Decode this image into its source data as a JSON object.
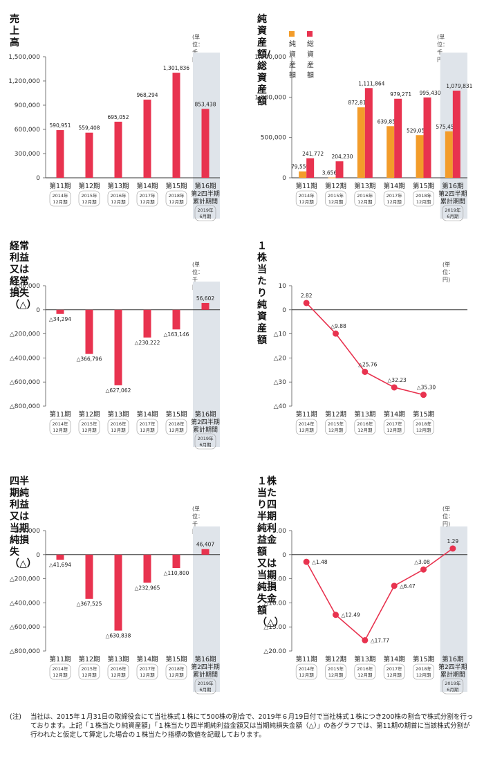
{
  "colors": {
    "net": "#f39c2a",
    "total": "#e8334f",
    "bar": "#e8334f",
    "highlight": "#dfe4ea",
    "axis": "#333333"
  },
  "chart_data": [
    {
      "id": "sales",
      "type": "bar",
      "title": "売上高",
      "unit": "(単位：千円)",
      "ylim": [
        0,
        1500000
      ],
      "yticks": [
        0,
        300000,
        600000,
        900000,
        1200000,
        1500000
      ],
      "ytick_labels": [
        "0",
        "300,000",
        "600,000",
        "900,000",
        "1,200,000",
        "1,500,000"
      ],
      "categories": [
        "第11期",
        "第12期",
        "第13期",
        "第14期",
        "第15期",
        "第16期"
      ],
      "sublabels": [
        [
          "2014年",
          "12月期"
        ],
        [
          "2015年",
          "12月期"
        ],
        [
          "2016年",
          "12月期"
        ],
        [
          "2017年",
          "12月期"
        ],
        [
          "2018年",
          "12月期"
        ],
        [
          "第2四半期",
          "累計期間",
          "2019年",
          "6月期"
        ]
      ],
      "values": [
        590951,
        559408,
        695052,
        968294,
        1301836,
        853438
      ],
      "value_labels": [
        "590,951",
        "559,408",
        "695,052",
        "968,294",
        "1,301,836",
        "853,438"
      ],
      "highlight_last": true
    },
    {
      "id": "assets",
      "type": "bar",
      "title": "純資産額/総資産額",
      "unit": "(単位：千円)",
      "ylim": [
        0,
        1500000
      ],
      "yticks": [
        0,
        500000,
        1000000,
        1500000
      ],
      "ytick_labels": [
        "0",
        "500,000",
        "1,000,000",
        "1,500,000"
      ],
      "categories": [
        "第11期",
        "第12期",
        "第13期",
        "第14期",
        "第15期",
        "第16期"
      ],
      "sublabels": [
        [
          "2014年",
          "12月期"
        ],
        [
          "2015年",
          "12月期"
        ],
        [
          "2016年",
          "12月期"
        ],
        [
          "2017年",
          "12月期"
        ],
        [
          "2018年",
          "12月期"
        ],
        [
          "第2四半期",
          "累計期間",
          "2019年",
          "6月期"
        ]
      ],
      "series": [
        {
          "name": "純資産額",
          "values": [
            79559,
            3656,
            872817,
            639852,
            529051,
            575459
          ],
          "labels": [
            "79,559",
            "3,656",
            "872,817",
            "639,852",
            "529,051",
            "575,459"
          ]
        },
        {
          "name": "総資産額",
          "values": [
            241772,
            204230,
            1111864,
            979271,
            995430,
            1079831
          ],
          "labels": [
            "241,772",
            "204,230",
            "1,111,864",
            "979,271",
            "995,430",
            "1,079,831"
          ]
        }
      ],
      "legend": "top-left",
      "highlight_last": true
    },
    {
      "id": "ordinary",
      "type": "bar",
      "title": "経常利益又は経常損失（△）",
      "unit": "(単位：千円)",
      "ylim": [
        -800000,
        200000
      ],
      "yticks": [
        200000,
        0,
        -200000,
        -400000,
        -600000,
        -800000
      ],
      "ytick_labels": [
        "200,000",
        "0",
        "△200,000",
        "△400,000",
        "△600,000",
        "△800,000"
      ],
      "categories": [
        "第11期",
        "第12期",
        "第13期",
        "第14期",
        "第15期",
        "第16期"
      ],
      "sublabels": [
        [
          "2014年",
          "12月期"
        ],
        [
          "2015年",
          "12月期"
        ],
        [
          "2016年",
          "12月期"
        ],
        [
          "2017年",
          "12月期"
        ],
        [
          "2018年",
          "12月期"
        ],
        [
          "第2四半期",
          "累計期間",
          "2019年",
          "6月期"
        ]
      ],
      "values": [
        -34294,
        -366796,
        -627062,
        -230222,
        -163146,
        56602
      ],
      "value_labels": [
        "△34,294",
        "△366,796",
        "△627,062",
        "△230,222",
        "△163,146",
        "56,602"
      ],
      "highlight_last": true
    },
    {
      "id": "bps",
      "type": "line",
      "title": "１株当たり純資産額",
      "unit": "(単位：円)",
      "ylim": [
        -40,
        10
      ],
      "yticks": [
        10,
        0,
        -10,
        -20,
        -30,
        -40
      ],
      "ytick_labels": [
        "10",
        "0",
        "△10",
        "△20",
        "△30",
        "△40"
      ],
      "categories": [
        "第11期",
        "第12期",
        "第13期",
        "第14期",
        "第15期"
      ],
      "sublabels": [
        [
          "2014年",
          "12月期"
        ],
        [
          "2015年",
          "12月期"
        ],
        [
          "2016年",
          "12月期"
        ],
        [
          "2017年",
          "12月期"
        ],
        [
          "2018年",
          "12月期"
        ]
      ],
      "values": [
        2.82,
        -9.88,
        -25.76,
        -32.23,
        -35.3
      ],
      "value_labels": [
        "2.82",
        "△9.88",
        "△25.76",
        "△32.23",
        "△35.30"
      ],
      "highlight_last": false
    },
    {
      "id": "quarterly",
      "type": "bar",
      "title": "四半期純利益又は当期純損失（△）",
      "unit": "(単位：千円)",
      "ylim": [
        -800000,
        200000
      ],
      "yticks": [
        200000,
        0,
        -200000,
        -400000,
        -600000,
        -800000
      ],
      "ytick_labels": [
        "200,000",
        "0",
        "△200,000",
        "△400,000",
        "△600,000",
        "△800,000"
      ],
      "categories": [
        "第11期",
        "第12期",
        "第13期",
        "第14期",
        "第15期",
        "第16期"
      ],
      "sublabels": [
        [
          "2014年",
          "12月期"
        ],
        [
          "2015年",
          "12月期"
        ],
        [
          "2016年",
          "12月期"
        ],
        [
          "2017年",
          "12月期"
        ],
        [
          "2018年",
          "12月期"
        ],
        [
          "第2四半期",
          "累計期間",
          "2019年",
          "6月期"
        ]
      ],
      "values": [
        -41694,
        -367525,
        -630838,
        -232965,
        -110800,
        46407
      ],
      "value_labels": [
        "△41,694",
        "△367,525",
        "△630,838",
        "△232,965",
        "△110,800",
        "46,407"
      ],
      "highlight_last": true
    },
    {
      "id": "eps",
      "type": "line",
      "title": "１株当たり四半期純利益金額\n又は当期純損失金額（△）",
      "unit": "(単位：円)",
      "ylim": [
        -20,
        5
      ],
      "yticks": [
        5,
        0,
        -5,
        -10,
        -15,
        -20
      ],
      "ytick_labels": [
        "5.00",
        "0",
        "△5.00",
        "△10.00",
        "△15.00",
        "△20.00"
      ],
      "categories": [
        "第11期",
        "第12期",
        "第13期",
        "第14期",
        "第15期",
        "第16期"
      ],
      "sublabels": [
        [
          "2014年",
          "12月期"
        ],
        [
          "2015年",
          "12月期"
        ],
        [
          "2016年",
          "12月期"
        ],
        [
          "2017年",
          "12月期"
        ],
        [
          "2018年",
          "12月期"
        ],
        [
          "第2四半期",
          "累計期間",
          "2019年",
          "6月期"
        ]
      ],
      "values": [
        -1.48,
        -12.49,
        -17.77,
        -6.47,
        -3.08,
        1.29
      ],
      "value_labels": [
        "△1.48",
        "△12.49",
        "△17.77",
        "△6.47",
        "△3.08",
        "1.29"
      ],
      "highlight_last": true
    }
  ],
  "footnote": {
    "mark": "(注)",
    "text": "当社は、2015年１月31日の取締役会にて当社株式１株にて500株の割合で、2019年６月19日付で当社株式１株につき200株の割合で株式分割を行っております。上記「１株当たり純資産額」「１株当たり四半期純利益金額又は当期純損失金額（△）」の各グラフでは、第11期の期首に当該株式分割が行われたと仮定して算定した場合の１株当たり指標の数値を記載しております。"
  }
}
